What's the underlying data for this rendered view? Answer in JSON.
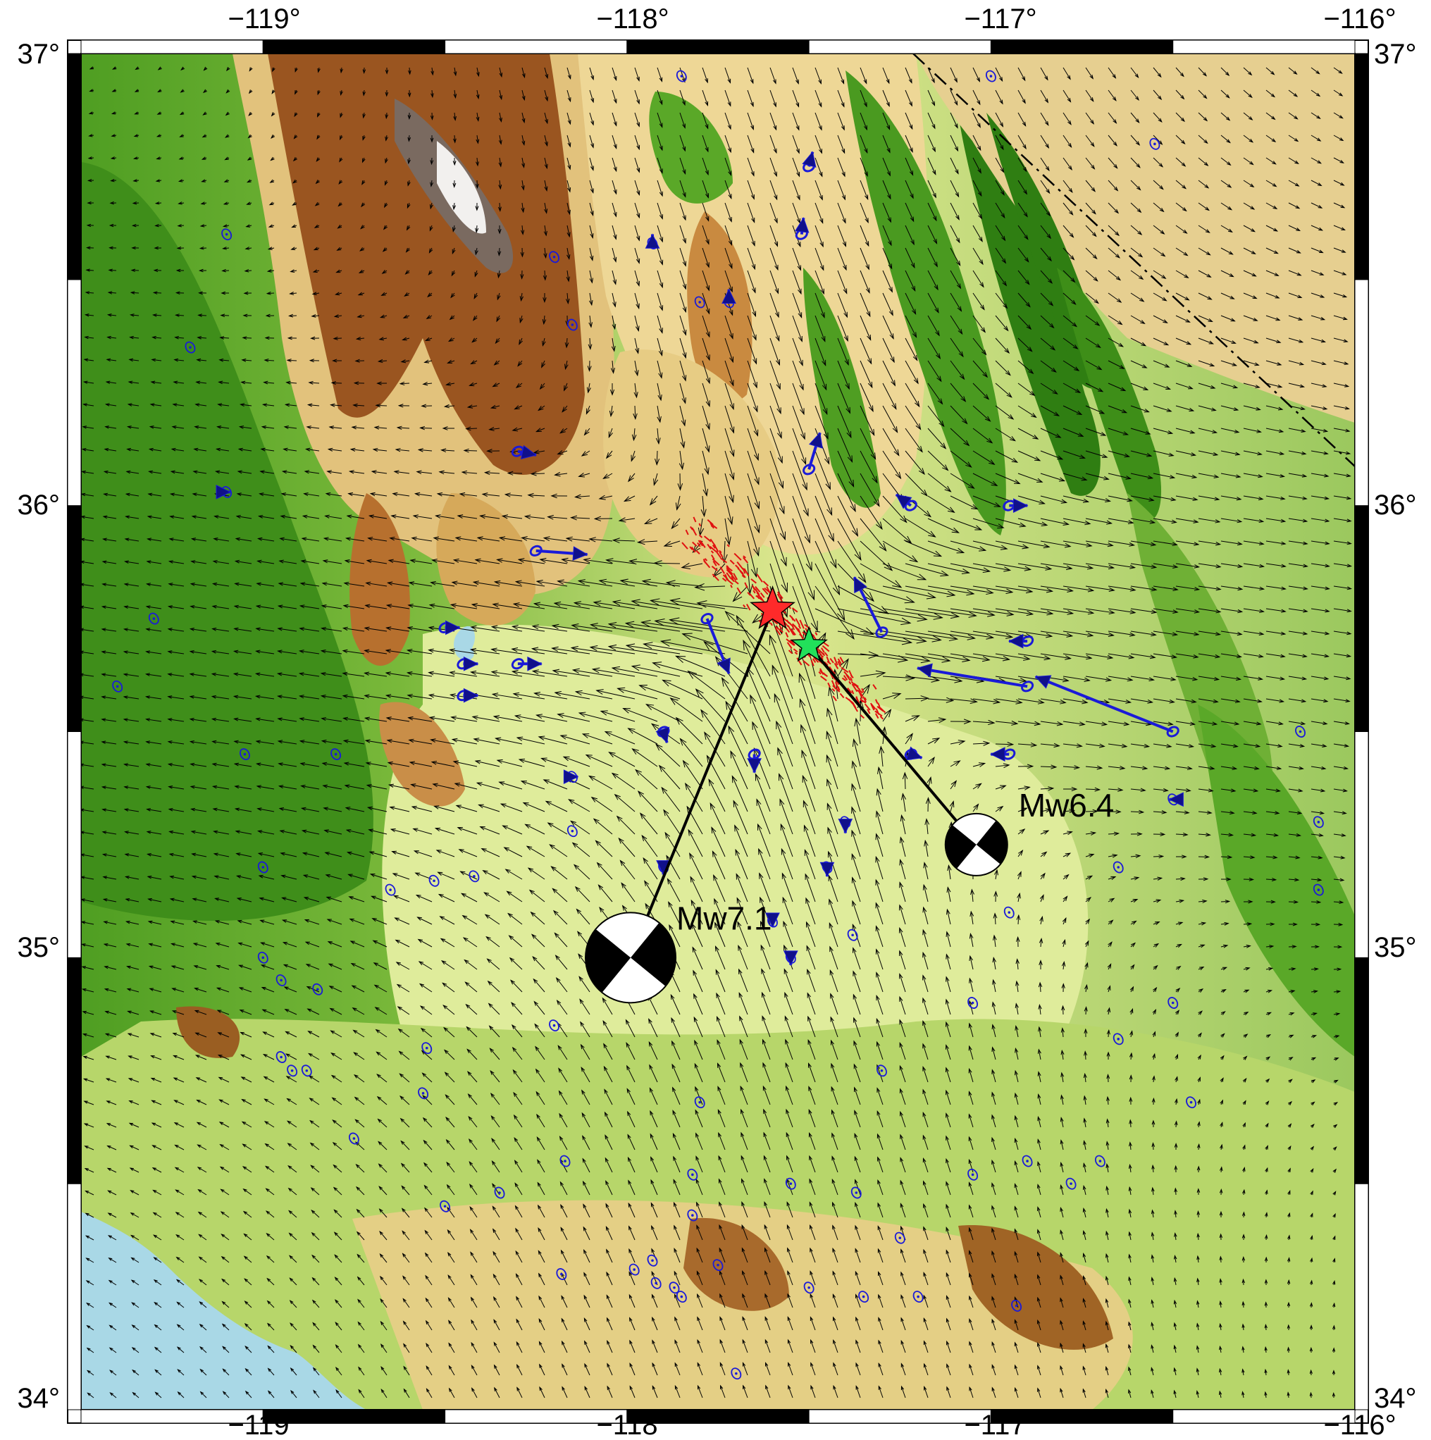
{
  "map": {
    "lon_labels": [
      "−119°",
      "−118°",
      "−117°",
      "−116°"
    ],
    "lat_labels": [
      "37°",
      "36°",
      "35°",
      "34°"
    ],
    "events": [
      {
        "label": "Mw7.1",
        "lon": -117.6,
        "lat": 35.77,
        "star_color": "#ff2a2a",
        "beachball_lon": -117.99,
        "beachball_lat": 35.0
      },
      {
        "label": "Mw6.4",
        "lon": -117.5,
        "lat": 35.69,
        "star_color": "#22e05a",
        "beachball_lon": -117.04,
        "beachball_lat": 35.25
      }
    ],
    "colors": {
      "lowland": "#4f9e22",
      "plain": "#d9e98a",
      "desert": "#e9d38b",
      "mountain": "#a05a1e",
      "peak": "#ffffff",
      "ocean": "#a9d8e6",
      "observed_vectors": "#1a1ad8",
      "model_vectors": "#000000",
      "rupture": "#e01010"
    }
  }
}
